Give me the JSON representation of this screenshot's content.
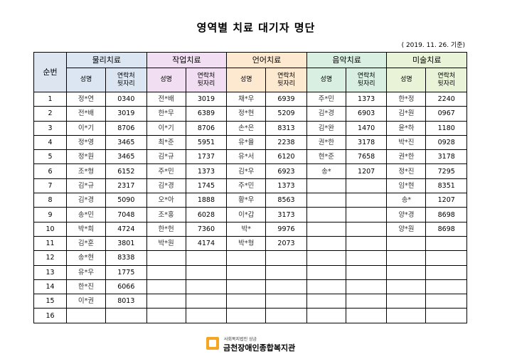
{
  "title": "영역별 치료 대기자 명단",
  "date": "( 2019. 11. 26. 기준)",
  "index_header": "순번",
  "name_header": "성명",
  "contact_header": [
    "연락처",
    "뒷자리"
  ],
  "departments": [
    "물리치료",
    "작업치료",
    "언어치료",
    "음악치료",
    "미술치료"
  ],
  "rows": [
    {
      "no": "1",
      "cells": [
        [
          "정*연",
          "0340"
        ],
        [
          "전*배",
          "3019"
        ],
        [
          "채*우",
          "6939"
        ],
        [
          "주*민",
          "1373"
        ],
        [
          "한*정",
          "2240"
        ]
      ]
    },
    {
      "no": "2",
      "cells": [
        [
          "전*배",
          "3019"
        ],
        [
          "한*무",
          "6389"
        ],
        [
          "정*현",
          "5209"
        ],
        [
          "김*경",
          "6903"
        ],
        [
          "김*원",
          "0967"
        ]
      ]
    },
    {
      "no": "3",
      "cells": [
        [
          "이*기",
          "8706"
        ],
        [
          "이*기",
          "8706"
        ],
        [
          "손*은",
          "8313"
        ],
        [
          "김*완",
          "1470"
        ],
        [
          "윤*하",
          "1180"
        ]
      ]
    },
    {
      "no": "4",
      "cells": [
        [
          "정*영",
          "3465"
        ],
        [
          "최*준",
          "5951"
        ],
        [
          "유*율",
          "2238"
        ],
        [
          "권*한",
          "3178"
        ],
        [
          "박*진",
          "0928"
        ]
      ]
    },
    {
      "no": "5",
      "cells": [
        [
          "정*원",
          "3465"
        ],
        [
          "김*규",
          "1737"
        ],
        [
          "유*서",
          "6120"
        ],
        [
          "현*준",
          "7658"
        ],
        [
          "권*한",
          "3178"
        ]
      ]
    },
    {
      "no": "6",
      "cells": [
        [
          "조*형",
          "6152"
        ],
        [
          "주*민",
          "1373"
        ],
        [
          "김*우",
          "6923"
        ],
        [
          "송*",
          "1207"
        ],
        [
          "정*진",
          "7295"
        ]
      ]
    },
    {
      "no": "7",
      "cells": [
        [
          "김*규",
          "2317"
        ],
        [
          "김*경",
          "1745"
        ],
        [
          "주*민",
          "1373"
        ],
        [
          "",
          ""
        ],
        [
          "임*현",
          "8351"
        ]
      ]
    },
    {
      "no": "8",
      "cells": [
        [
          "김*경",
          "5090"
        ],
        [
          "오*아",
          "1888"
        ],
        [
          "황*우",
          "8563"
        ],
        [
          "",
          ""
        ],
        [
          "송*",
          "1207"
        ]
      ]
    },
    {
      "no": "9",
      "cells": [
        [
          "송*민",
          "7048"
        ],
        [
          "조*홍",
          "6028"
        ],
        [
          "이*갑",
          "3173"
        ],
        [
          "",
          ""
        ],
        [
          "양*경",
          "8698"
        ]
      ]
    },
    {
      "no": "10",
      "cells": [
        [
          "박*희",
          "4724"
        ],
        [
          "한*헌",
          "7360"
        ],
        [
          "박*",
          "9976"
        ],
        [
          "",
          ""
        ],
        [
          "양*원",
          "8698"
        ]
      ]
    },
    {
      "no": "11",
      "cells": [
        [
          "김*훈",
          "3801"
        ],
        [
          "박*원",
          "4174"
        ],
        [
          "박*형",
          "2073"
        ],
        [
          "",
          ""
        ],
        [
          "",
          ""
        ]
      ]
    },
    {
      "no": "12",
      "cells": [
        [
          "송*현",
          "8338"
        ],
        [
          "",
          ""
        ],
        [
          "",
          ""
        ],
        [
          "",
          ""
        ],
        [
          "",
          ""
        ]
      ]
    },
    {
      "no": "13",
      "cells": [
        [
          "유*우",
          "1775"
        ],
        [
          "",
          ""
        ],
        [
          "",
          ""
        ],
        [
          "",
          ""
        ],
        [
          "",
          ""
        ]
      ]
    },
    {
      "no": "14",
      "cells": [
        [
          "한*진",
          "6066"
        ],
        [
          "",
          ""
        ],
        [
          "",
          ""
        ],
        [
          "",
          ""
        ],
        [
          "",
          ""
        ]
      ]
    },
    {
      "no": "15",
      "cells": [
        [
          "이*권",
          "8013"
        ],
        [
          "",
          ""
        ],
        [
          "",
          ""
        ],
        [
          "",
          ""
        ],
        [
          "",
          ""
        ]
      ]
    },
    {
      "no": "16",
      "cells": [
        [
          "",
          ""
        ],
        [
          "",
          ""
        ],
        [
          "",
          ""
        ],
        [
          "",
          ""
        ],
        [
          "",
          ""
        ]
      ]
    }
  ],
  "footer": {
    "org_small": "사회복지법인 상금",
    "org_name": "금천장애인종합복지관"
  },
  "colors": {
    "dept": [
      "#dce6f2",
      "#f2def2",
      "#fde9d0",
      "#d9efe2",
      "#e9f3d8"
    ],
    "logo": "#f5a623"
  }
}
